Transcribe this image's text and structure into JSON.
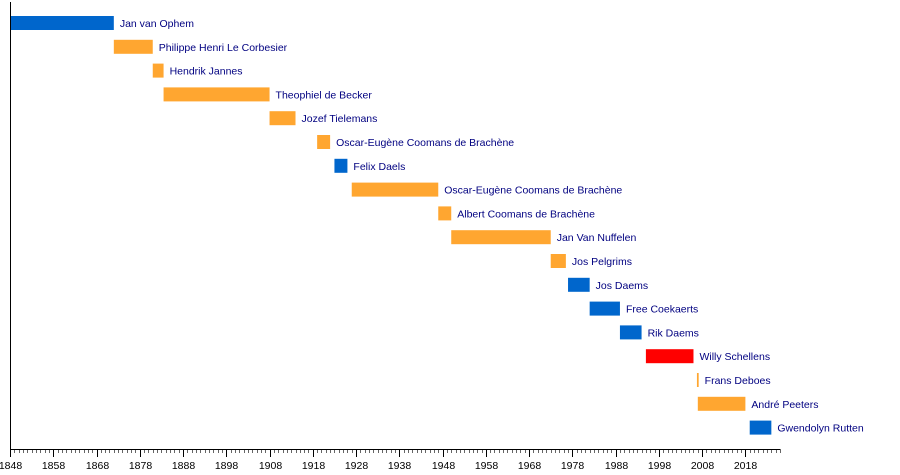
{
  "chart_data": {
    "type": "timeline",
    "xlim": [
      1848,
      2026
    ],
    "ticks": [
      1848,
      1858,
      1868,
      1878,
      1888,
      1898,
      1908,
      1918,
      1928,
      1938,
      1948,
      1958,
      1968,
      1978,
      1988,
      1998,
      2008,
      2018
    ],
    "minor_tick_step": 1,
    "party_colors": {
      "blue": "#0066cc",
      "orange": "#ffa630",
      "red": "#ff0000"
    },
    "bars": [
      {
        "label": "Jan van Ophem",
        "start": 1848,
        "end": 1872,
        "color": "blue"
      },
      {
        "label": "Philippe Henri Le Corbesier",
        "start": 1872,
        "end": 1881,
        "color": "orange"
      },
      {
        "label": "Hendrik Jannes",
        "start": 1881,
        "end": 1883.5,
        "color": "orange"
      },
      {
        "label": "Theophiel de Becker",
        "start": 1883.5,
        "end": 1908,
        "color": "orange"
      },
      {
        "label": "Jozef Tielemans",
        "start": 1908,
        "end": 1914,
        "color": "orange"
      },
      {
        "label": "Oscar-Eugène Coomans de Brachène",
        "start": 1919,
        "end": 1922,
        "color": "orange"
      },
      {
        "label": "Felix Daels",
        "start": 1923,
        "end": 1926,
        "color": "blue"
      },
      {
        "label": "Oscar-Eugène Coomans de Brachène",
        "start": 1927,
        "end": 1947,
        "color": "orange"
      },
      {
        "label": "Albert Coomans de Brachène",
        "start": 1947,
        "end": 1950,
        "color": "orange"
      },
      {
        "label": "Jan Van Nuffelen",
        "start": 1950,
        "end": 1973,
        "color": "orange"
      },
      {
        "label": "Jos Pelgrims",
        "start": 1973,
        "end": 1976.5,
        "color": "orange"
      },
      {
        "label": "Jos Daems",
        "start": 1977,
        "end": 1982,
        "color": "blue"
      },
      {
        "label": "Free Coekaerts",
        "start": 1982,
        "end": 1989,
        "color": "blue"
      },
      {
        "label": "Rik Daems",
        "start": 1989,
        "end": 1994,
        "color": "blue"
      },
      {
        "label": "Willy Schellens",
        "start": 1995,
        "end": 2006,
        "color": "red"
      },
      {
        "label": "Frans Deboes",
        "start": 2006.8,
        "end": 2007.2,
        "color": "orange"
      },
      {
        "label": "André Peeters",
        "start": 2007,
        "end": 2018,
        "color": "orange"
      },
      {
        "label": "Gwendolyn Rutten",
        "start": 2019,
        "end": 2024,
        "color": "blue"
      }
    ]
  }
}
